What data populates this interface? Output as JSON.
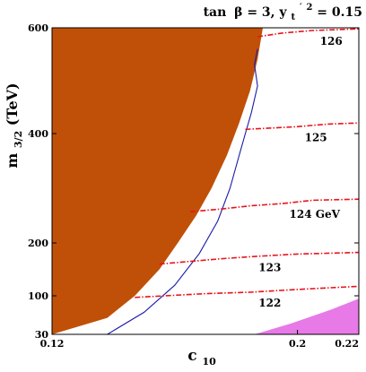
{
  "chart_data": {
    "type": "contour",
    "title_parts": {
      "lead": "tan",
      "beta": "β",
      "rest1": " = 3, y",
      "sub": "t",
      "prime": "′",
      "sup": "2",
      "rest2": " = 0.15"
    },
    "xlabel": {
      "main": "c",
      "sub": "10"
    },
    "ylabel": {
      "main": "m",
      "sub": "3/2",
      "unit": " (TeV)"
    },
    "xlim": [
      0.12,
      0.22
    ],
    "x_ticks": [
      {
        "label": "0.12",
        "value": 0.12
      },
      {
        "label": "0.2",
        "value": 0.2
      },
      {
        "label": "0.22",
        "value": 0.22
      }
    ],
    "y_ticks": [
      {
        "label": "600",
        "value": 600
      },
      {
        "label": "400",
        "value": 400
      },
      {
        "label": "200",
        "value": 200
      },
      {
        "label": "100",
        "value": 100
      },
      {
        "label": "30",
        "value": 30
      }
    ],
    "colors": {
      "excluded_region": "#c05008",
      "corner_region": "#e77ae7",
      "higgs_contours": "#e8141c",
      "boundary_line": "#1a1aa8"
    },
    "regions": [
      {
        "name": "excluded",
        "color": "#c05008",
        "boundary": [
          [
            0.12,
            600
          ],
          [
            0.1887,
            600
          ],
          [
            0.187,
            540
          ],
          [
            0.1845,
            480
          ],
          [
            0.181,
            420
          ],
          [
            0.177,
            360
          ],
          [
            0.172,
            300
          ],
          [
            0.167,
            250
          ],
          [
            0.161,
            200
          ],
          [
            0.155,
            150
          ],
          [
            0.147,
            100
          ],
          [
            0.138,
            60
          ],
          [
            0.12,
            30
          ]
        ]
      },
      {
        "name": "corner",
        "color": "#e77ae7",
        "boundary": [
          [
            0.186,
            30
          ],
          [
            0.198,
            50
          ],
          [
            0.211,
            75
          ],
          [
            0.22,
            95
          ],
          [
            0.22,
            30
          ]
        ]
      }
    ],
    "blue_line": [
      [
        0.138,
        30
      ],
      [
        0.15,
        70
      ],
      [
        0.16,
        120
      ],
      [
        0.168,
        180
      ],
      [
        0.174,
        240
      ],
      [
        0.178,
        300
      ],
      [
        0.181,
        360
      ],
      [
        0.183,
        400
      ],
      [
        0.185,
        440
      ],
      [
        0.187,
        490
      ],
      [
        0.186,
        530
      ],
      [
        0.187,
        560
      ]
    ],
    "higgs_contours": [
      {
        "label": "126",
        "unit": "",
        "points": [
          [
            0.187,
            583
          ],
          [
            0.195,
            590
          ],
          [
            0.205,
            595
          ],
          [
            0.215,
            597
          ],
          [
            0.22,
            598
          ]
        ]
      },
      {
        "label": "125",
        "unit": "",
        "points": [
          [
            0.183,
            408
          ],
          [
            0.19,
            410
          ],
          [
            0.2,
            413
          ],
          [
            0.21,
            418
          ],
          [
            0.22,
            420
          ]
        ]
      },
      {
        "label": "124",
        "unit": " GeV",
        "points": [
          [
            0.165,
            257
          ],
          [
            0.175,
            262
          ],
          [
            0.185,
            268
          ],
          [
            0.195,
            272
          ],
          [
            0.205,
            278
          ],
          [
            0.22,
            280
          ]
        ]
      },
      {
        "label": "123",
        "unit": "",
        "points": [
          [
            0.155,
            160
          ],
          [
            0.165,
            165
          ],
          [
            0.175,
            170
          ],
          [
            0.185,
            174
          ],
          [
            0.2,
            179
          ],
          [
            0.22,
            182
          ]
        ]
      },
      {
        "label": "122",
        "unit": "",
        "points": [
          [
            0.147,
            97
          ],
          [
            0.16,
            101
          ],
          [
            0.17,
            104
          ],
          [
            0.185,
            107
          ],
          [
            0.2,
            112
          ],
          [
            0.22,
            118
          ]
        ]
      }
    ]
  }
}
